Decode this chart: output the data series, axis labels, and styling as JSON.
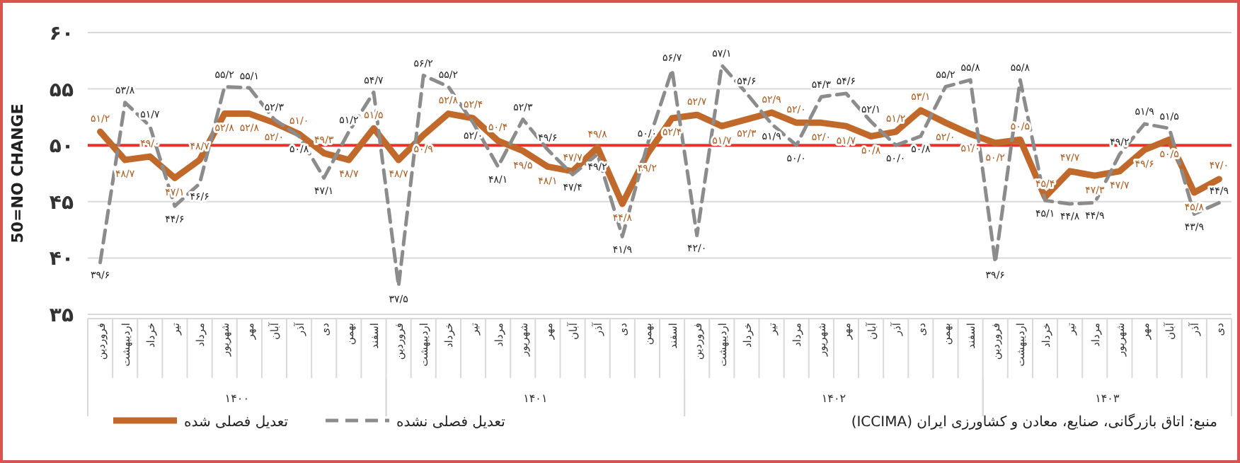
{
  "chart_data": {
    "type": "line",
    "ylabel": "50=NO CHANGE",
    "categories": [
      "فروردین",
      "اردیبهشت",
      "خرداد",
      "تیر",
      "مرداد",
      "شهریور",
      "مهر",
      "آبان",
      "آذر",
      "دی",
      "بهمن",
      "اسفند",
      "فروردین",
      "اردیبهشت",
      "خرداد",
      "تیر",
      "مرداد",
      "شهریور",
      "مهر",
      "آبان",
      "آذر",
      "دی",
      "بهمن",
      "اسفند",
      "فروردین",
      "اردیبهشت",
      "خرداد",
      "تیر",
      "مرداد",
      "شهریور",
      "مهر",
      "آبان",
      "آذر",
      "دی",
      "بهمن",
      "اسفند",
      "فروردین",
      "اردیبهشت",
      "خرداد",
      "تیر",
      "مرداد",
      "شهریور",
      "مهر",
      "آبان",
      "آذر",
      "دی"
    ],
    "series": [
      {
        "name": "تعدیل فصلی شده",
        "color": "#c0692a",
        "line_style": "solid",
        "values": [
          51.2,
          48.7,
          49.0,
          47.1,
          48.7,
          52.8,
          52.8,
          52.0,
          51.0,
          49.3,
          48.7,
          51.5,
          48.7,
          50.9,
          52.8,
          52.4,
          50.4,
          49.5,
          48.1,
          47.7,
          49.8,
          44.8,
          49.2,
          52.4,
          52.7,
          51.7,
          52.3,
          52.9,
          52.0,
          52.0,
          51.7,
          50.8,
          51.2,
          53.1,
          52.0,
          51.0,
          50.2,
          50.5,
          45.4,
          47.7,
          47.3,
          47.7,
          49.6,
          50.5,
          45.8,
          47.0
        ],
        "value_labels": [
          "۵۱/۲",
          "۴۸/۷",
          "۴۹/۰",
          "۴۷/۱",
          "۴۸/۷",
          "۵۲/۸",
          "۵۲/۸",
          "۵۲/۰",
          "۵۱/۰",
          "۴۹/۳",
          "۴۸/۷",
          "۵۱/۵",
          "۴۸/۷",
          "۵۰/۹",
          "۵۲/۸",
          "۵۲/۴",
          "۵۰/۴",
          "۴۹/۵",
          "۴۸/۱",
          "۴۷/۷",
          "۴۹/۸",
          "۴۴/۸",
          "۴۹/۲",
          "۵۲/۴",
          "۵۲/۷",
          "۵۱/۷",
          "۵۲/۳",
          "۵۲/۹",
          "۵۲/۰",
          "۵۲/۰",
          "۵۱/۷",
          "۵۰/۸",
          "۵۱/۲",
          "۵۳/۱",
          "۵۲/۰",
          "۵۱/۰",
          "۵۰/۲",
          "۵۰/۵",
          "۴۵/۴",
          "۴۷/۷",
          "۴۷/۳",
          "۴۷/۷",
          "۴۹/۶",
          "۵۰/۵",
          "۴۵/۸",
          "۴۷/۰"
        ]
      },
      {
        "name": "تعدیل فصلی نشده",
        "color": "#8c8c8c",
        "line_style": "dashed",
        "values": [
          39.6,
          53.8,
          51.7,
          44.6,
          46.6,
          55.2,
          55.1,
          52.3,
          50.8,
          47.1,
          51.2,
          54.7,
          37.5,
          56.2,
          55.2,
          52.0,
          48.1,
          52.3,
          49.6,
          47.4,
          49.2,
          41.9,
          50.0,
          56.7,
          42.0,
          57.1,
          54.6,
          51.9,
          50.0,
          54.3,
          54.6,
          52.1,
          50.0,
          50.8,
          55.2,
          55.8,
          39.6,
          55.8,
          45.1,
          44.8,
          44.9,
          49.2,
          51.9,
          51.5,
          43.9,
          44.9
        ],
        "value_labels": [
          "۳۹/۶",
          "۵۳/۸",
          "۵۱/۷",
          "۴۴/۶",
          "۴۶/۶",
          "۵۵/۲",
          "۵۵/۱",
          "۵۲/۳",
          "۵۰/۸",
          "۴۷/۱",
          "۵۱/۲",
          "۵۴/۷",
          "۳۷/۵",
          "۵۶/۲",
          "۵۵/۲",
          "۵۲/۰",
          "۴۸/۱",
          "۵۲/۳",
          "۴۹/۶",
          "۴۷/۴",
          "۴۹/۲",
          "۴۱/۹",
          "۵۰/۰",
          "۵۶/۷",
          "۴۲/۰",
          "۵۷/۱",
          "۵۴/۶",
          "۵۱/۹",
          "۵۰/۰",
          "۵۴/۳",
          "۵۴/۶",
          "۵۲/۱",
          "۵۰/۰",
          "۵۰/۸",
          "۵۵/۲",
          "۵۵/۸",
          "۳۹/۶",
          "۵۵/۸",
          "۴۵/۱",
          "۴۴/۸",
          "۴۴/۹",
          "۴۹/۲",
          "۵۱/۹",
          "۵۱/۵",
          "۴۳/۹",
          "۴۴/۹"
        ]
      }
    ],
    "ylim": [
      35,
      60
    ],
    "yticks": [
      {
        "value": 35,
        "label": "۳۵"
      },
      {
        "value": 40,
        "label": "۴۰"
      },
      {
        "value": 45,
        "label": "۴۵"
      },
      {
        "value": 50,
        "label": "۵۰"
      },
      {
        "value": 55,
        "label": "۵۵"
      },
      {
        "value": 60,
        "label": "۶۰"
      }
    ],
    "grid": "y",
    "ref_lines": [
      {
        "axis": "y",
        "value": 50,
        "color": "#e8322a"
      }
    ],
    "legend": "bottom left",
    "annotations": [
      "۱۴۰۰",
      "۱۴۰۱",
      "۱۴۰۲",
      "۱۴۰۳",
      "منبع: اتاق بازرگانی، صنایع، معادن و کشاورزی ایران (ICCIMA)"
    ]
  }
}
